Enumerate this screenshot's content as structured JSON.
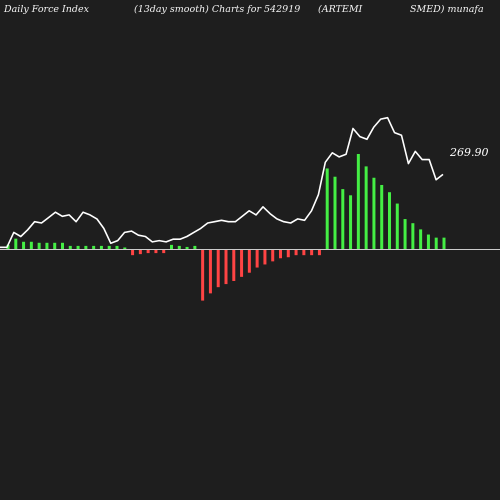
{
  "header": {
    "col1": "Daily Force  Index",
    "col2": "(13day smooth) Charts for 542919",
    "col3": "(ARTEMI",
    "col4": "SMED) munafa"
  },
  "colors": {
    "background": "#1e1e1e",
    "line": "#ffffff",
    "positive_bar": "#44ee44",
    "negative_bar": "#ff4444",
    "zero_line": "#cccccc",
    "text": "#f2f2f2"
  },
  "chart_data": {
    "type": "bar",
    "price_label": "269.90",
    "force_index": [
      3,
      2,
      3,
      1,
      3,
      1,
      0,
      -1,
      -1,
      -1,
      0,
      -3,
      -3,
      -1,
      -1,
      -1,
      0,
      1,
      1,
      0,
      1,
      0,
      1,
      0,
      1,
      0,
      1,
      0,
      1,
      0,
      -1,
      -3,
      -2,
      -2,
      -2,
      -2,
      -1,
      1,
      1,
      0,
      -1,
      -1,
      1,
      0,
      -1,
      -1,
      -1,
      -1,
      -49,
      -42,
      -38,
      -33,
      -30,
      -27,
      -24,
      -22,
      -18,
      -16,
      -14,
      -11,
      -9,
      -7,
      -6,
      -4,
      -4,
      -3,
      -3,
      -1,
      -1,
      -1,
      -1,
      -1,
      -1,
      -1,
      -2,
      -2,
      -1,
      -3,
      -3,
      -3,
      -6,
      -7,
      78,
      70,
      58,
      52,
      92,
      80,
      69,
      62,
      55,
      44,
      38,
      29,
      25,
      19,
      14,
      12,
      11,
      6,
      5
    ],
    "bars_sampled": [
      {
        "v": 4
      },
      {
        "v": 10
      },
      {
        "v": 7
      },
      {
        "v": 7
      },
      {
        "v": 6
      },
      {
        "v": 6
      },
      {
        "v": 6
      },
      {
        "v": 6
      },
      {
        "v": 3
      },
      {
        "v": 3
      },
      {
        "v": 3
      },
      {
        "v": 3
      },
      {
        "v": 3
      },
      {
        "v": 3
      },
      {
        "v": 3
      },
      {
        "v": 1
      },
      {
        "v": -5
      },
      {
        "v": -4
      },
      {
        "v": -3
      },
      {
        "v": -3
      },
      {
        "v": -3
      },
      {
        "v": 4
      },
      {
        "v": 3
      },
      {
        "v": 2
      },
      {
        "v": 3
      },
      {
        "v": -49
      },
      {
        "v": -42
      },
      {
        "v": -36
      },
      {
        "v": -33
      },
      {
        "v": -30
      },
      {
        "v": -26
      },
      {
        "v": -22
      },
      {
        "v": -17
      },
      {
        "v": -14
      },
      {
        "v": -11
      },
      {
        "v": -8
      },
      {
        "v": -7
      },
      {
        "v": -5
      },
      {
        "v": -5
      },
      {
        "v": -5
      },
      {
        "v": -5
      },
      {
        "v": 78
      },
      {
        "v": 70
      },
      {
        "v": 58
      },
      {
        "v": 52
      },
      {
        "v": 92
      },
      {
        "v": 80
      },
      {
        "v": 69
      },
      {
        "v": 62
      },
      {
        "v": 55
      },
      {
        "v": 44
      },
      {
        "v": 29
      },
      {
        "v": 25
      },
      {
        "v": 19
      },
      {
        "v": 14
      },
      {
        "v": 11
      },
      {
        "v": 11
      }
    ],
    "price_series": [
      232,
      232,
      243,
      240,
      245,
      251,
      250,
      254,
      258,
      255,
      256,
      251,
      258,
      256,
      253,
      246,
      235,
      237,
      243,
      244,
      241,
      240,
      236,
      237,
      236,
      238,
      238,
      240,
      243,
      246,
      250,
      251,
      252,
      251,
      251,
      255,
      259,
      256,
      262,
      257,
      253,
      251,
      250,
      253,
      252,
      259,
      271,
      295,
      302,
      299,
      301,
      320,
      314,
      312,
      321,
      327,
      328,
      317,
      315,
      294,
      303,
      297,
      297,
      282,
      286
    ]
  }
}
